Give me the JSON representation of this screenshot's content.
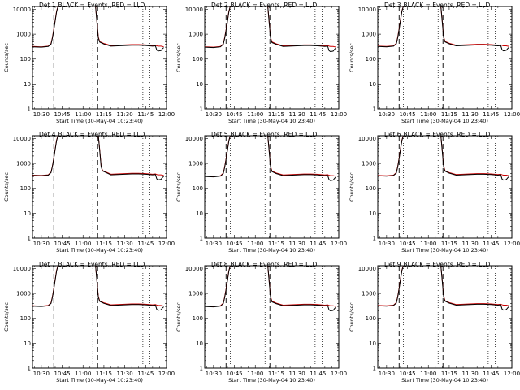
{
  "chart_data": {
    "type": "line",
    "layout": "3x3 grid of panels",
    "shared": {
      "ylabel": "Counts/sec",
      "yscale": "log",
      "ylim": [
        1,
        13000
      ],
      "yticks": [
        "1",
        "10",
        "100",
        "1000",
        "10000"
      ],
      "xlim": [
        "10:23:40",
        "12:00:00"
      ],
      "xticks": [
        "10:30",
        "10:45",
        "11:00",
        "11:15",
        "11:30",
        "11:45",
        "12:00"
      ],
      "xlabel": "Start Time (30-May-04 10:23:40)",
      "legend_text": "BLACK = Events, RED = LLD",
      "dashed_lines": [
        "10:39:00",
        "11:10:30"
      ],
      "dotted_lines": [
        "10:42:00",
        "11:07:00",
        "11:43:00",
        "11:48:00"
      ],
      "colors": {
        "events": "#000000",
        "lld": "#cc0000"
      },
      "grid": false
    },
    "panels": [
      {
        "title": "Det 1",
        "x": [
          "10:23:40",
          "10:30",
          "10:35",
          "10:37",
          "10:38",
          "10:39",
          "10:40",
          "10:41",
          "10:42",
          "10:43",
          "11:08",
          "11:09",
          "11:10",
          "11:11",
          "11:12",
          "11:15",
          "11:20",
          "11:25",
          "11:30",
          "11:35",
          "11:40",
          "11:45",
          "11:50",
          "11:52",
          "11:53",
          "11:54",
          "11:55",
          "11:56",
          "11:57",
          "11:58"
        ],
        "series": [
          {
            "name": "BLACK = Events",
            "values": [
              310,
              300,
              320,
              400,
              700,
              1500,
              3500,
              8000,
              13000,
              13000,
              13000,
              13000,
              3000,
              700,
              480,
              400,
              330,
              340,
              350,
              360,
              360,
              350,
              330,
              340,
              230,
              210,
              215,
              220,
              260,
              290
            ]
          },
          {
            "name": "RED = LLD",
            "values": [
              320,
              310,
              330,
              420,
              750,
              1600,
              3700,
              8500,
              13000,
              13000,
              13000,
              13000,
              3200,
              760,
              500,
              420,
              350,
              360,
              370,
              380,
              380,
              370,
              350,
              360,
              340,
              330,
              330,
              330,
              320,
              310
            ]
          }
        ]
      },
      {
        "title": "Det 2",
        "x": [
          "10:23:40",
          "10:30",
          "10:35",
          "10:37",
          "10:38",
          "10:39",
          "10:40",
          "10:41",
          "10:42",
          "10:43",
          "11:08",
          "11:09",
          "11:10",
          "11:11",
          "11:12",
          "11:15",
          "11:20",
          "11:25",
          "11:30",
          "11:35",
          "11:40",
          "11:45",
          "11:50",
          "11:52",
          "11:53",
          "11:54",
          "11:55",
          "11:56",
          "11:57",
          "11:58"
        ],
        "series": [
          {
            "name": "BLACK = Events",
            "values": [
              300,
              290,
              310,
              390,
              680,
              1400,
              3300,
              7800,
              13000,
              13000,
              13000,
              13000,
              2900,
              680,
              460,
              390,
              320,
              330,
              340,
              350,
              350,
              340,
              320,
              330,
              220,
              200,
              205,
              210,
              250,
              280
            ]
          },
          {
            "name": "RED = LLD",
            "values": [
              310,
              300,
              320,
              410,
              720,
              1500,
              3500,
              8200,
              13000,
              13000,
              13000,
              13000,
              3100,
              740,
              490,
              410,
              340,
              350,
              360,
              370,
              370,
              360,
              340,
              350,
              330,
              320,
              320,
              320,
              310,
              300
            ]
          }
        ]
      },
      {
        "title": "Det 3",
        "x": [
          "10:23:40",
          "10:30",
          "10:35",
          "10:37",
          "10:38",
          "10:39",
          "10:40",
          "10:41",
          "10:42",
          "10:43",
          "11:08",
          "11:09",
          "11:10",
          "11:11",
          "11:12",
          "11:15",
          "11:20",
          "11:25",
          "11:30",
          "11:35",
          "11:40",
          "11:45",
          "11:50",
          "11:52",
          "11:53",
          "11:54",
          "11:55",
          "11:56",
          "11:57",
          "11:58"
        ],
        "series": [
          {
            "name": "BLACK = Events",
            "values": [
              320,
              310,
              330,
              410,
              720,
              1550,
              3600,
              8200,
              13000,
              13000,
              13000,
              13000,
              3100,
              720,
              490,
              410,
              340,
              350,
              360,
              370,
              370,
              360,
              340,
              350,
              235,
              215,
              220,
              225,
              265,
              300
            ]
          },
          {
            "name": "RED = LLD",
            "values": [
              330,
              320,
              340,
              430,
              770,
              1650,
              3800,
              8700,
              13000,
              13000,
              13000,
              13000,
              3300,
              780,
              510,
              430,
              360,
              370,
              380,
              390,
              390,
              380,
              360,
              370,
              350,
              340,
              340,
              340,
              330,
              320
            ]
          }
        ]
      },
      {
        "title": "Det 4",
        "x": [
          "10:23:40",
          "10:30",
          "10:35",
          "10:37",
          "10:38",
          "10:39",
          "10:40",
          "10:41",
          "10:42",
          "10:43",
          "11:10",
          "11:11",
          "11:12",
          "11:13",
          "11:14",
          "11:17",
          "11:20",
          "11:25",
          "11:30",
          "11:35",
          "11:40",
          "11:45",
          "11:50",
          "11:52",
          "11:53",
          "11:54",
          "11:55",
          "11:56",
          "11:57",
          "11:58"
        ],
        "series": [
          {
            "name": "BLACK = Events",
            "values": [
              330,
              320,
              340,
              430,
              760,
              1600,
              3700,
              8300,
              13000,
              13000,
              13000,
              13000,
              3200,
              740,
              500,
              420,
              350,
              360,
              370,
              380,
              380,
              370,
              350,
              360,
              240,
              220,
              225,
              230,
              270,
              300
            ]
          },
          {
            "name": "RED = LLD",
            "values": [
              340,
              330,
              350,
              450,
              800,
              1700,
              3900,
              8800,
              13000,
              13000,
              13000,
              13000,
              3400,
              800,
              520,
              440,
              370,
              380,
              390,
              400,
              400,
              390,
              370,
              380,
              360,
              350,
              350,
              350,
              340,
              330
            ]
          }
        ]
      },
      {
        "title": "Det 5",
        "x": [
          "10:23:40",
          "10:30",
          "10:35",
          "10:37",
          "10:38",
          "10:39",
          "10:40",
          "10:41",
          "10:42",
          "10:43",
          "11:08",
          "11:09",
          "11:10",
          "11:11",
          "11:12",
          "11:15",
          "11:20",
          "11:25",
          "11:30",
          "11:35",
          "11:40",
          "11:45",
          "11:50",
          "11:52",
          "11:53",
          "11:54",
          "11:55",
          "11:56",
          "11:57",
          "11:58"
        ],
        "series": [
          {
            "name": "BLACK = Events",
            "values": [
              300,
              290,
              310,
              390,
              690,
              1450,
              3400,
              7900,
              13000,
              13000,
              13000,
              13000,
              2950,
              690,
              470,
              395,
              325,
              335,
              345,
              355,
              355,
              345,
              325,
              335,
              225,
              205,
              210,
              215,
              255,
              285
            ]
          },
          {
            "name": "RED = LLD",
            "values": [
              310,
              300,
              320,
              410,
              730,
              1550,
              3600,
              8300,
              13000,
              13000,
              13000,
              13000,
              3150,
              750,
              495,
              415,
              345,
              355,
              365,
              375,
              375,
              365,
              345,
              355,
              335,
              325,
              325,
              325,
              315,
              305
            ]
          }
        ]
      },
      {
        "title": "Det 6",
        "x": [
          "10:23:40",
          "10:30",
          "10:35",
          "10:37",
          "10:38",
          "10:39",
          "10:40",
          "10:41",
          "10:42",
          "10:43",
          "11:08",
          "11:09",
          "11:10",
          "11:11",
          "11:12",
          "11:15",
          "11:20",
          "11:25",
          "11:30",
          "11:35",
          "11:40",
          "11:45",
          "11:50",
          "11:52",
          "11:53",
          "11:54",
          "11:55",
          "11:56",
          "11:57",
          "11:58"
        ],
        "series": [
          {
            "name": "BLACK = Events",
            "values": [
              320,
              310,
              330,
              410,
              720,
              1550,
              3600,
              8200,
              13000,
              13000,
              13000,
              13000,
              3100,
              720,
              490,
              410,
              340,
              350,
              360,
              370,
              370,
              360,
              340,
              350,
              235,
              215,
              220,
              225,
              265,
              300
            ]
          },
          {
            "name": "RED = LLD",
            "values": [
              330,
              320,
              340,
              430,
              770,
              1650,
              3800,
              8700,
              13000,
              13000,
              13000,
              13000,
              3300,
              780,
              510,
              430,
              360,
              370,
              380,
              390,
              390,
              380,
              360,
              370,
              350,
              340,
              340,
              340,
              330,
              320
            ]
          }
        ]
      },
      {
        "title": "Det 7",
        "x": [
          "10:23:40",
          "10:30",
          "10:35",
          "10:37",
          "10:38",
          "10:39",
          "10:40",
          "10:41",
          "10:42",
          "10:43",
          "11:08",
          "11:09",
          "11:10",
          "11:11",
          "11:12",
          "11:15",
          "11:20",
          "11:25",
          "11:30",
          "11:35",
          "11:40",
          "11:45",
          "11:50",
          "11:52",
          "11:53",
          "11:54",
          "11:55",
          "11:56",
          "11:57",
          "11:58"
        ],
        "series": [
          {
            "name": "BLACK = Events",
            "values": [
              310,
              300,
              320,
              400,
              700,
              1500,
              3500,
              8000,
              13000,
              13000,
              13000,
              13000,
              3000,
              700,
              480,
              400,
              330,
              340,
              350,
              360,
              360,
              350,
              330,
              340,
              230,
              210,
              215,
              220,
              260,
              290
            ]
          },
          {
            "name": "RED = LLD",
            "values": [
              320,
              310,
              330,
              420,
              750,
              1600,
              3700,
              8500,
              13000,
              13000,
              13000,
              13000,
              3200,
              760,
              500,
              420,
              350,
              360,
              370,
              380,
              380,
              370,
              350,
              360,
              340,
              330,
              330,
              330,
              320,
              310
            ]
          }
        ]
      },
      {
        "title": "Det 8",
        "x": [
          "10:23:40",
          "10:30",
          "10:35",
          "10:37",
          "10:38",
          "10:39",
          "10:40",
          "10:41",
          "10:42",
          "10:43",
          "11:08",
          "11:09",
          "11:10",
          "11:11",
          "11:12",
          "11:15",
          "11:20",
          "11:25",
          "11:30",
          "11:35",
          "11:40",
          "11:45",
          "11:50",
          "11:52",
          "11:53",
          "11:54",
          "11:55",
          "11:56",
          "11:57",
          "11:58"
        ],
        "series": [
          {
            "name": "BLACK = Events",
            "values": [
              300,
              290,
              310,
              390,
              680,
              1400,
              3300,
              7800,
              13000,
              13000,
              13000,
              13000,
              2900,
              680,
              460,
              390,
              320,
              330,
              340,
              350,
              350,
              340,
              320,
              330,
              220,
              200,
              205,
              210,
              250,
              280
            ]
          },
          {
            "name": "RED = LLD",
            "values": [
              310,
              300,
              320,
              410,
              720,
              1500,
              3500,
              8200,
              13000,
              13000,
              13000,
              13000,
              3100,
              740,
              490,
              410,
              340,
              350,
              360,
              370,
              370,
              360,
              340,
              350,
              330,
              320,
              320,
              320,
              310,
              300
            ]
          }
        ]
      },
      {
        "title": "Det 9",
        "x": [
          "10:23:40",
          "10:30",
          "10:35",
          "10:37",
          "10:38",
          "10:39",
          "10:40",
          "10:41",
          "10:42",
          "10:43",
          "11:08",
          "11:09",
          "11:10",
          "11:11",
          "11:12",
          "11:15",
          "11:20",
          "11:25",
          "11:30",
          "11:35",
          "11:40",
          "11:45",
          "11:50",
          "11:52",
          "11:53",
          "11:54",
          "11:55",
          "11:56",
          "11:57",
          "11:58"
        ],
        "series": [
          {
            "name": "BLACK = Events",
            "values": [
              320,
              310,
              330,
              410,
              720,
              1550,
              3600,
              8200,
              13000,
              13000,
              13000,
              13000,
              3100,
              720,
              490,
              410,
              340,
              350,
              360,
              370,
              370,
              360,
              340,
              350,
              235,
              215,
              220,
              225,
              265,
              300
            ]
          },
          {
            "name": "RED = LLD",
            "values": [
              330,
              320,
              340,
              430,
              770,
              1650,
              3800,
              8700,
              13000,
              13000,
              13000,
              13000,
              3300,
              780,
              510,
              430,
              360,
              370,
              380,
              390,
              390,
              380,
              360,
              370,
              350,
              340,
              340,
              340,
              330,
              320
            ]
          }
        ]
      }
    ]
  }
}
